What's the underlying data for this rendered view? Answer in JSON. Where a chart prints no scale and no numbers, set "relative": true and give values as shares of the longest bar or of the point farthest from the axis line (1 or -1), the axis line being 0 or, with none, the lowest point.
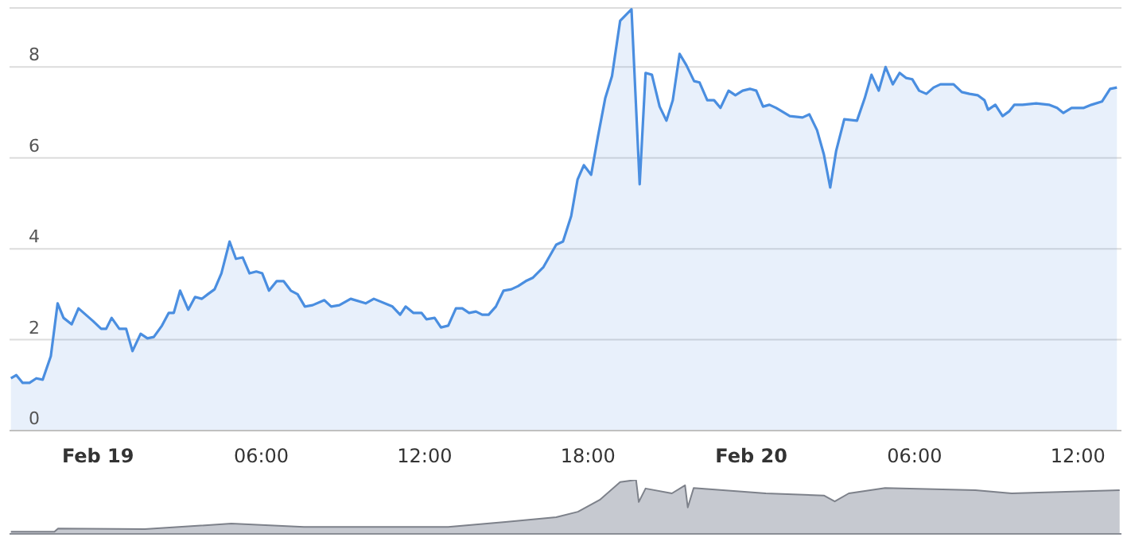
{
  "chart_data": [
    {
      "type": "area",
      "x": [
        "--02-18T20:48",
        "--02-18T21:00",
        "--02-18T21:14",
        "--02-18T21:29",
        "--02-18T21:44",
        "--02-18T21:58",
        "--02-18T22:16",
        "--02-18T22:31",
        "--02-18T22:44",
        "--02-18T23:02",
        "--02-18T23:17",
        "--02-18T23:49",
        "--02-19T00:07",
        "--02-19T00:18",
        "--02-19T00:30",
        "--02-19T00:47",
        "--02-19T01:02",
        "--02-19T01:16",
        "--02-19T01:34",
        "--02-19T01:49",
        "--02-19T02:03",
        "--02-19T02:21",
        "--02-19T02:36",
        "--02-19T02:47",
        "--02-19T03:01",
        "--02-19T03:19",
        "--02-19T03:34",
        "--02-19T03:49",
        "--02-19T04:02",
        "--02-19T04:17",
        "--02-19T04:32",
        "--02-19T04:50",
        "--02-19T05:04",
        "--02-19T05:19",
        "--02-19T05:34",
        "--02-19T05:49",
        "--02-19T06:02",
        "--02-19T06:17",
        "--02-19T06:34",
        "--02-19T06:49",
        "--02-19T07:05",
        "--02-19T07:20",
        "--02-19T07:36",
        "--02-19T07:53",
        "--02-19T08:19",
        "--02-19T08:34",
        "--02-19T08:52",
        "--02-19T09:17",
        "--02-19T09:50",
        "--02-19T10:08",
        "--02-19T10:49",
        "--02-19T11:06",
        "--02-19T11:18",
        "--02-19T11:35",
        "--02-19T11:53",
        "--02-19T12:04",
        "--02-19T12:22",
        "--02-19T12:36",
        "--02-19T12:52",
        "--02-19T13:09",
        "--02-19T13:23",
        "--02-19T13:38",
        "--02-19T13:53",
        "--02-19T14:07",
        "--02-19T14:21",
        "--02-19T14:37",
        "--02-19T14:54",
        "--02-19T15:11",
        "--02-19T15:26",
        "--02-19T15:43",
        "--02-19T15:58",
        "--02-19T16:22",
        "--02-19T16:50",
        "--02-19T17:05",
        "--02-19T17:23",
        "--02-19T17:37",
        "--02-19T17:51",
        "--02-19T18:07",
        "--02-19T18:22",
        "--02-19T18:38",
        "--02-19T18:53",
        "--02-19T19:11",
        "--02-19T19:36",
        "--02-19T19:54",
        "--02-19T20:07",
        "--02-19T20:21",
        "--02-19T20:38",
        "--02-19T20:53",
        "--02-19T21:07",
        "--02-19T21:22",
        "--02-19T21:37",
        "--02-19T21:54",
        "--02-19T22:06",
        "--02-19T22:23",
        "--02-19T22:38",
        "--02-19T22:52",
        "--02-19T23:10",
        "--02-19T23:25",
        "--02-19T23:41",
        "--02-19T23:57",
        "--02-20T00:11",
        "--02-20T00:26",
        "--02-20T00:40",
        "--02-20T00:55",
        "--02-20T01:25",
        "--02-20T01:53",
        "--02-20T02:08",
        "--02-20T02:25",
        "--02-20T02:40",
        "--02-20T02:54",
        "--02-20T03:07",
        "--02-20T03:25",
        "--02-20T03:53",
        "--02-20T04:10",
        "--02-20T04:25",
        "--02-20T04:41",
        "--02-20T04:56",
        "--02-20T05:12",
        "--02-20T05:27",
        "--02-20T05:41",
        "--02-20T05:55",
        "--02-20T06:10",
        "--02-20T06:26",
        "--02-20T06:42",
        "--02-20T06:57",
        "--02-20T07:26",
        "--02-20T07:44",
        "--02-20T08:01",
        "--02-20T08:19",
        "--02-20T08:34",
        "--02-20T08:42",
        "--02-20T08:58",
        "--02-20T09:14",
        "--02-20T09:29",
        "--02-20T09:40",
        "--02-20T09:58",
        "--02-20T10:28",
        "--02-20T10:56",
        "--02-20T11:14",
        "--02-20T11:28",
        "--02-20T11:46",
        "--02-20T12:13",
        "--02-20T12:30",
        "--02-20T12:53",
        "--02-20T13:11",
        "--02-20T13:26"
      ],
      "series": [
        {
          "color": "#4a8ee0",
          "values": [
            1.15,
            1.22,
            1.05,
            1.05,
            1.15,
            1.12,
            1.64,
            2.8,
            2.48,
            2.34,
            2.69,
            2.41,
            2.24,
            2.24,
            2.48,
            2.24,
            2.24,
            1.75,
            2.13,
            2.03,
            2.06,
            2.31,
            2.59,
            2.59,
            3.08,
            2.66,
            2.94,
            2.9,
            3.0,
            3.11,
            3.46,
            4.16,
            3.78,
            3.81,
            3.46,
            3.5,
            3.46,
            3.08,
            3.29,
            3.29,
            3.08,
            3.0,
            2.73,
            2.76,
            2.87,
            2.73,
            2.76,
            2.9,
            2.8,
            2.9,
            2.73,
            2.55,
            2.73,
            2.59,
            2.59,
            2.45,
            2.48,
            2.27,
            2.31,
            2.69,
            2.69,
            2.59,
            2.62,
            2.55,
            2.55,
            2.73,
            3.08,
            3.11,
            3.18,
            3.29,
            3.36,
            3.6,
            4.09,
            4.16,
            4.72,
            5.52,
            5.84,
            5.63,
            6.47,
            7.31,
            7.8,
            9.02,
            9.27,
            5.42,
            7.87,
            7.83,
            7.13,
            6.82,
            7.27,
            8.29,
            8.04,
            7.69,
            7.66,
            7.27,
            7.27,
            7.1,
            7.48,
            7.38,
            7.48,
            7.52,
            7.48,
            7.13,
            7.17,
            7.1,
            6.92,
            6.89,
            6.96,
            6.61,
            6.08,
            5.35,
            6.15,
            6.85,
            6.82,
            7.31,
            7.83,
            7.48,
            8.0,
            7.62,
            7.87,
            7.76,
            7.73,
            7.48,
            7.41,
            7.55,
            7.62,
            7.62,
            7.45,
            7.41,
            7.38,
            7.27,
            7.06,
            7.17,
            6.92,
            7.03,
            7.17,
            7.17,
            7.2,
            7.17,
            7.1,
            6.99,
            7.1,
            7.1,
            7.17,
            7.24,
            7.52,
            7.55
          ]
        }
      ],
      "xlim": [
        "--02-18T20:45",
        "--02-20T13:36"
      ],
      "xticks": [
        {
          "value": "--02-19T00:00",
          "label": "Feb 19"
        },
        {
          "value": "--02-19T06:00",
          "label": "06:00"
        },
        {
          "value": "--02-19T12:00",
          "label": "12:00"
        },
        {
          "value": "--02-19T18:00",
          "label": "18:00"
        },
        {
          "value": "--02-20T00:00",
          "label": "Feb 20"
        },
        {
          "value": "--02-20T06:00",
          "label": "06:00"
        },
        {
          "value": "--02-20T12:00",
          "label": "12:00"
        }
      ],
      "ylim": [
        0,
        9.3
      ],
      "yticks": [
        0,
        2,
        4,
        6,
        8
      ],
      "grid": "y"
    },
    {
      "type": "area",
      "relative": true,
      "tick_labels": false,
      "xlim": [
        "--02-18T20:45",
        "--02-20T13:36"
      ],
      "x": [
        "--02-18T20:48",
        "--02-18T22:24",
        "--02-18T22:32",
        "--02-19T01:43",
        "--02-19T04:54",
        "--02-19T07:34",
        "--02-19T12:52",
        "--02-19T14:58",
        "--02-19T16:50",
        "--02-19T17:38",
        "--02-19T18:26",
        "--02-19T19:11",
        "--02-19T19:46",
        "--02-19T19:52",
        "--02-19T20:07",
        "--02-19T21:05",
        "--02-19T21:34",
        "--02-19T21:40",
        "--02-19T21:53",
        "--02-20T00:32",
        "--02-20T02:40",
        "--02-20T03:04",
        "--02-20T03:35",
        "--02-20T04:55",
        "--02-20T08:14",
        "--02-20T09:34",
        "--02-20T13:32"
      ],
      "series": [
        {
          "color": "#7d818a",
          "values": [
            0.04,
            0.04,
            0.1,
            0.09,
            0.19,
            0.13,
            0.13,
            0.22,
            0.31,
            0.41,
            0.63,
            0.96,
            1,
            0.59,
            0.84,
            0.75,
            0.9,
            0.49,
            0.85,
            0.75,
            0.71,
            0.6,
            0.75,
            0.85,
            0.81,
            0.75,
            0.81
          ]
        }
      ]
    }
  ]
}
